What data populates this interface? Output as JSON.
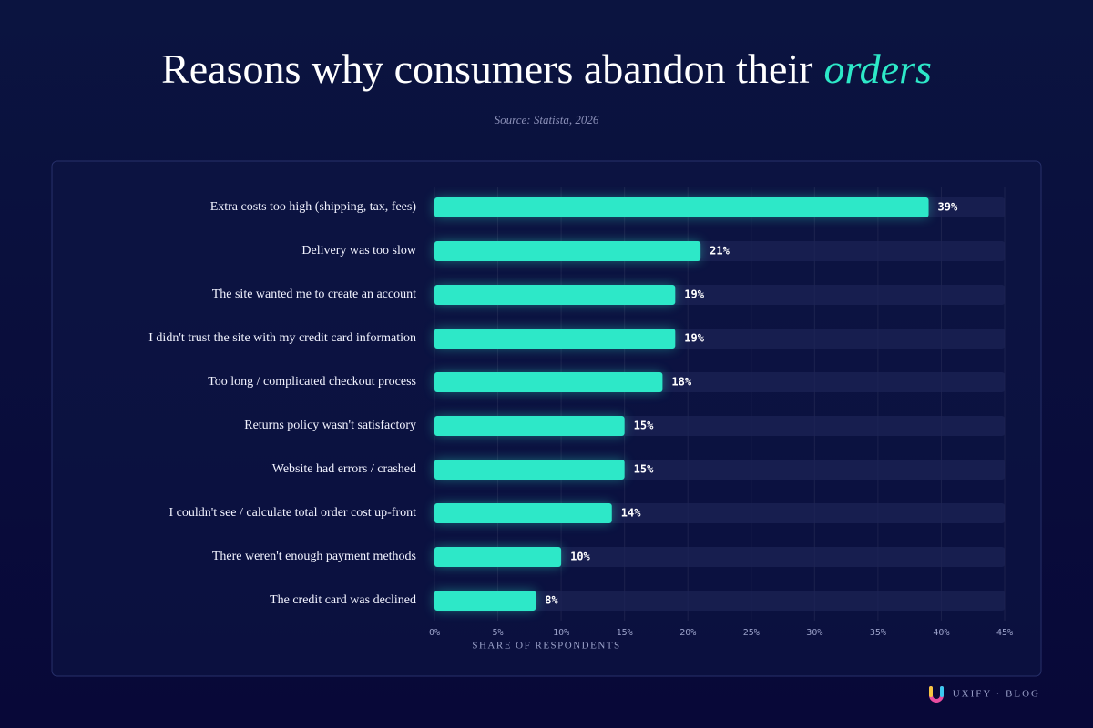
{
  "chart_data": {
    "type": "bar",
    "orientation": "horizontal",
    "title": "Reasons why consumers abandon their",
    "title_highlight": "orders",
    "subtitle": "Source: Statista, 2026",
    "x_label": "SHARE OF RESPONDENTS",
    "brand": "UXIFY · BLOG",
    "categories": [
      "Extra costs too high (shipping, tax, fees)",
      "Delivery was too slow",
      "The site wanted me to create an account",
      "I didn't trust the site with my credit card information",
      "Too long / complicated checkout process",
      "Returns policy wasn't satisfactory",
      "Website had errors / crashed",
      "I couldn't see / calculate total order cost up-front",
      "There weren't enough payment methods",
      "The credit card was declined"
    ],
    "values": [
      39,
      21,
      19,
      19,
      18,
      15,
      15,
      14,
      10,
      8
    ],
    "value_labels": [
      "39%",
      "21%",
      "19%",
      "19%",
      "18%",
      "15%",
      "15%",
      "14%",
      "10%",
      "8%"
    ],
    "color": "#2de8c8",
    "xlim": [
      0,
      45
    ],
    "xticks": [
      {
        "value": 0,
        "label": "0%"
      },
      {
        "value": 5,
        "label": "5%"
      },
      {
        "value": 10,
        "label": "10%"
      },
      {
        "value": 15,
        "label": "15%"
      },
      {
        "value": 20,
        "label": "20%"
      },
      {
        "value": 25,
        "label": "25%"
      },
      {
        "value": 30,
        "label": "30%"
      },
      {
        "value": 35,
        "label": "35%"
      },
      {
        "value": 40,
        "label": "40%"
      },
      {
        "value": 45,
        "label": "45%"
      }
    ],
    "grid": true
  }
}
